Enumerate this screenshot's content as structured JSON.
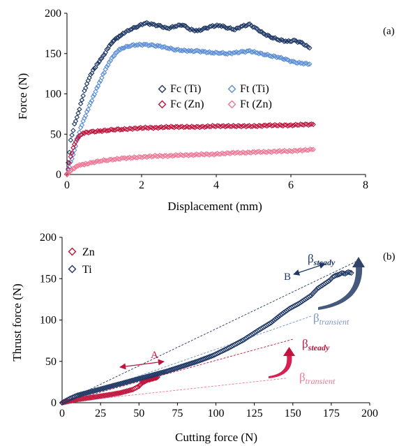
{
  "chart_data": [
    {
      "panel_label": "(a)",
      "type": "scatter",
      "xlabel": "Displacement (mm)",
      "ylabel": "Force (N)",
      "xlim": [
        0,
        8
      ],
      "ylim": [
        0,
        200
      ],
      "xticks": [
        "0",
        "2",
        "4",
        "6",
        "8"
      ],
      "yticks": [
        "0",
        "50",
        "100",
        "150",
        "200"
      ],
      "grid": false,
      "legend_placement": "center",
      "series": [
        {
          "name": "Fc (Ti)",
          "color": "#1f3864",
          "marker": "diamond-open",
          "x": [
            0,
            0.1,
            0.2,
            0.3,
            0.4,
            0.5,
            0.6,
            0.7,
            0.8,
            0.9,
            1.0,
            1.1,
            1.2,
            1.3,
            1.4,
            1.5,
            1.7,
            1.9,
            2.1,
            2.3,
            2.5,
            2.7,
            2.9,
            3.1,
            3.3,
            3.5,
            3.7,
            3.9,
            4.1,
            4.3,
            4.5,
            4.7,
            4.9,
            5.1,
            5.3,
            5.5,
            5.7,
            5.9,
            6.1,
            6.3,
            6.5
          ],
          "y": [
            0,
            42,
            62,
            76,
            93,
            108,
            120,
            129,
            136,
            143,
            149,
            157,
            163,
            168,
            171,
            175,
            180,
            184,
            188,
            186,
            184,
            181,
            184,
            186,
            180,
            178,
            181,
            184,
            185,
            182,
            180,
            184,
            186,
            180,
            174,
            170,
            167,
            165,
            166,
            163,
            157
          ]
        },
        {
          "name": "Ft (Ti)",
          "color": "#5b8ed6",
          "marker": "diamond-open",
          "x": [
            0,
            0.1,
            0.2,
            0.3,
            0.4,
            0.5,
            0.6,
            0.7,
            0.8,
            0.9,
            1.0,
            1.1,
            1.2,
            1.3,
            1.4,
            1.5,
            1.7,
            1.9,
            2.1,
            2.3,
            2.5,
            2.7,
            2.9,
            3.1,
            3.3,
            3.5,
            3.7,
            3.9,
            4.1,
            4.3,
            4.5,
            4.7,
            4.9,
            5.1,
            5.3,
            5.5,
            5.7,
            5.9,
            6.1,
            6.3,
            6.5
          ],
          "y": [
            0,
            15,
            30,
            48,
            62,
            73,
            85,
            96,
            107,
            117,
            127,
            136,
            144,
            150,
            155,
            157,
            160,
            161,
            161,
            160,
            159,
            157,
            155,
            154,
            153,
            153,
            152,
            151,
            151,
            150,
            151,
            152,
            153,
            151,
            149,
            147,
            145,
            142,
            139,
            138,
            137
          ]
        },
        {
          "name": "Fc (Zn)",
          "color": "#c0143c",
          "marker": "diamond-open",
          "x": [
            0,
            0.1,
            0.2,
            0.3,
            0.4,
            0.5,
            0.7,
            0.9,
            1.1,
            1.3,
            1.5,
            1.8,
            2.1,
            2.4,
            2.7,
            3.0,
            3.3,
            3.6,
            3.9,
            4.2,
            4.5,
            4.8,
            5.1,
            5.4,
            5.7,
            6.0,
            6.3,
            6.6
          ],
          "y": [
            0,
            22,
            38,
            46,
            50,
            52,
            53,
            54,
            55,
            56,
            56,
            57,
            58,
            58,
            59,
            59,
            59,
            59,
            60,
            60,
            60,
            60,
            60,
            61,
            61,
            61,
            62,
            62
          ]
        },
        {
          "name": "Ft (Zn)",
          "color": "#f07896",
          "marker": "diamond-open",
          "x": [
            0,
            0.1,
            0.2,
            0.3,
            0.4,
            0.5,
            0.7,
            0.9,
            1.1,
            1.3,
            1.5,
            1.8,
            2.1,
            2.4,
            2.7,
            3.0,
            3.3,
            3.6,
            3.9,
            4.2,
            4.5,
            4.8,
            5.1,
            5.4,
            5.7,
            6.0,
            6.3,
            6.6
          ],
          "y": [
            0,
            5,
            8,
            11,
            12,
            13,
            15,
            17,
            18,
            19,
            20,
            21,
            22,
            23,
            23,
            24,
            24,
            25,
            25,
            26,
            27,
            27,
            28,
            28,
            29,
            29,
            30,
            31
          ]
        }
      ]
    },
    {
      "panel_label": "(b)",
      "type": "scatter",
      "xlabel": "Cutting force (N)",
      "ylabel": "Thrust force (N)",
      "xlim": [
        0,
        200
      ],
      "ylim": [
        0,
        200
      ],
      "xticks": [
        "0",
        "25",
        "50",
        "75",
        "100",
        "125",
        "150",
        "175",
        "200"
      ],
      "yticks": [
        "0",
        "50",
        "100",
        "150",
        "200"
      ],
      "grid": false,
      "legend_placement": "top-left",
      "series": [
        {
          "name": "Zn",
          "color": "#c0143c",
          "marker": "diamond-open",
          "x": [
            0,
            5,
            10,
            18,
            25,
            32,
            38,
            42,
            46,
            48,
            50,
            51,
            52,
            53,
            54,
            55,
            56,
            57,
            58,
            59,
            60,
            61,
            62
          ],
          "y": [
            0,
            2,
            4,
            6,
            8,
            10,
            12,
            14,
            16,
            18,
            20,
            22,
            24,
            25,
            26,
            27,
            28,
            28,
            29,
            29,
            30,
            30,
            31
          ]
        },
        {
          "name": "Ti",
          "color": "#1f3864",
          "marker": "diamond-open",
          "x": [
            0,
            5,
            10,
            18,
            28,
            38,
            48,
            58,
            68,
            78,
            88,
            98,
            108,
            118,
            128,
            136,
            142,
            148,
            154,
            158,
            162,
            166,
            170,
            174,
            176,
            178,
            180,
            182,
            184,
            186,
            188
          ],
          "y": [
            0,
            5,
            9,
            13,
            18,
            23,
            28,
            33,
            38,
            44,
            50,
            57,
            66,
            76,
            88,
            97,
            106,
            114,
            120,
            125,
            130,
            138,
            143,
            148,
            152,
            154,
            155,
            157,
            156,
            158,
            157
          ]
        }
      ],
      "annotations": {
        "A": "A",
        "B": "B",
        "beta_symbol": "β",
        "steady": "steady",
        "transient": "transient"
      }
    }
  ]
}
